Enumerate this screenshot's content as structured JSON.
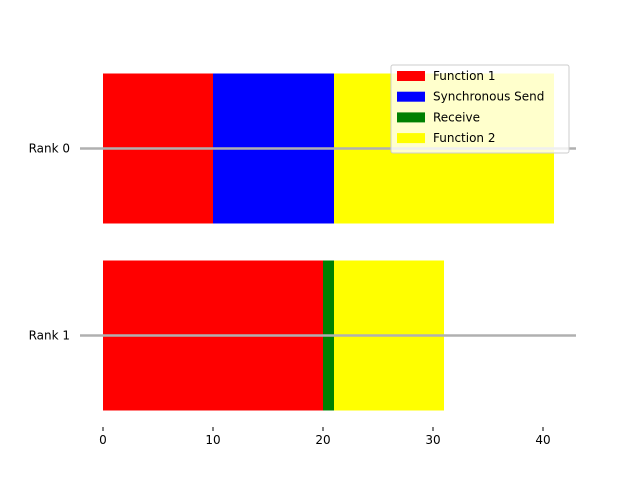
{
  "chart_data": {
    "type": "bar",
    "orientation": "horizontal-stacked",
    "categories": [
      "Rank 0",
      "Rank 1"
    ],
    "xlim": [
      0,
      43
    ],
    "xticks": [
      0,
      10,
      20,
      30,
      40
    ],
    "grid": false,
    "legend_position": "top-right",
    "series": [
      {
        "name": "Function 1",
        "color": "#ff0000",
        "values": [
          10,
          20
        ]
      },
      {
        "name": "Synchronous Send",
        "color": "#0000ff",
        "values": [
          11,
          0
        ]
      },
      {
        "name": "Receive",
        "color": "#008000",
        "values": [
          0,
          1
        ]
      },
      {
        "name": "Function 2",
        "color": "#ffff00",
        "values": [
          20,
          10
        ]
      }
    ],
    "rank_line_color": "#b0b0b0"
  }
}
